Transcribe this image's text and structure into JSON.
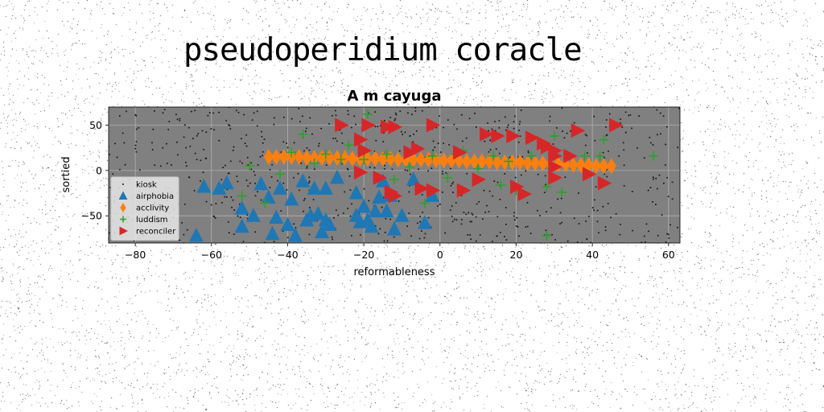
{
  "suptitle": "pseudoperidium coracle",
  "chart_data": {
    "type": "scatter",
    "title": "A m cayuga",
    "xlabel": "reformableness",
    "ylabel": "sortied",
    "xlim": [
      -87,
      63
    ],
    "ylim": [
      -80,
      70
    ],
    "xticks": [
      -80,
      -60,
      -40,
      -20,
      0,
      20,
      40,
      60
    ],
    "yticks": [
      -50,
      0,
      50
    ],
    "grid": true,
    "legend_position": "lower-left",
    "background": "#808080",
    "series": [
      {
        "name": "kiosk",
        "marker": "point",
        "color": "#1a1a1a",
        "count_estimate": 700,
        "x_range": [
          -87,
          63
        ],
        "y_range": [
          -80,
          70
        ]
      },
      {
        "name": "airphobia",
        "marker": "triangle-up",
        "color": "#1f77b4",
        "points": [
          [
            -64,
            -72
          ],
          [
            -62,
            -18
          ],
          [
            -58,
            -20
          ],
          [
            -56,
            -14
          ],
          [
            -52,
            -62
          ],
          [
            -52,
            -42
          ],
          [
            -49,
            -50
          ],
          [
            -47,
            -15
          ],
          [
            -45,
            -30
          ],
          [
            -44,
            -70
          ],
          [
            -43,
            -52
          ],
          [
            -42,
            -20
          ],
          [
            -40,
            -60
          ],
          [
            -39,
            -32
          ],
          [
            -38,
            -72
          ],
          [
            -36,
            -12
          ],
          [
            -35,
            -55
          ],
          [
            -34,
            -50
          ],
          [
            -33,
            -20
          ],
          [
            -32,
            -48
          ],
          [
            -31,
            -68
          ],
          [
            -30,
            -20
          ],
          [
            -30,
            -55
          ],
          [
            -29,
            -60
          ],
          [
            -27,
            -8
          ],
          [
            -22,
            -25
          ],
          [
            -22,
            -50
          ],
          [
            -21,
            -57
          ],
          [
            -20,
            -40
          ],
          [
            -19,
            -55
          ],
          [
            -18,
            -62
          ],
          [
            -17,
            -45
          ],
          [
            -16,
            -30
          ],
          [
            -15,
            -12
          ],
          [
            -14,
            -45
          ],
          [
            -13,
            -28
          ],
          [
            -12,
            -65
          ],
          [
            -10,
            -50
          ],
          [
            -7,
            -10
          ],
          [
            -4,
            -58
          ],
          [
            -2,
            -28
          ]
        ]
      },
      {
        "name": "acclivity",
        "marker": "diamond-thin",
        "color": "#ff7f0e",
        "points": [
          [
            -45,
            15
          ],
          [
            -43,
            15
          ],
          [
            -41,
            15
          ],
          [
            -39,
            15
          ],
          [
            -37,
            15
          ],
          [
            -35,
            14
          ],
          [
            -33,
            14
          ],
          [
            -31,
            14
          ],
          [
            -29,
            14
          ],
          [
            -27,
            14
          ],
          [
            -25,
            14
          ],
          [
            -23,
            13
          ],
          [
            -21,
            13
          ],
          [
            -19,
            13
          ],
          [
            -17,
            13
          ],
          [
            -15,
            13
          ],
          [
            -13,
            13
          ],
          [
            -11,
            12
          ],
          [
            -9,
            12
          ],
          [
            -7,
            12
          ],
          [
            -5,
            12
          ],
          [
            -3,
            12
          ],
          [
            -1,
            11
          ],
          [
            1,
            11
          ],
          [
            3,
            11
          ],
          [
            5,
            11
          ],
          [
            7,
            10
          ],
          [
            9,
            10
          ],
          [
            11,
            10
          ],
          [
            13,
            10
          ],
          [
            15,
            9
          ],
          [
            17,
            9
          ],
          [
            19,
            9
          ],
          [
            21,
            9
          ],
          [
            23,
            8
          ],
          [
            25,
            8
          ],
          [
            27,
            8
          ],
          [
            29,
            7
          ],
          [
            31,
            7
          ],
          [
            33,
            7
          ],
          [
            35,
            6
          ],
          [
            37,
            6
          ],
          [
            39,
            6
          ],
          [
            41,
            5
          ],
          [
            43,
            5
          ],
          [
            45,
            5
          ]
        ]
      },
      {
        "name": "luddism",
        "marker": "plus",
        "color": "#2ca02c",
        "points": [
          [
            -52,
            -28
          ],
          [
            -50,
            5
          ],
          [
            -46,
            -36
          ],
          [
            -42,
            -4
          ],
          [
            -39,
            20
          ],
          [
            -36,
            40
          ],
          [
            -33,
            8
          ],
          [
            -30,
            18
          ],
          [
            -26,
            12
          ],
          [
            -24,
            28
          ],
          [
            -20,
            12
          ],
          [
            -19,
            62
          ],
          [
            -14,
            18
          ],
          [
            -12,
            -10
          ],
          [
            -8,
            4
          ],
          [
            -4,
            -36
          ],
          [
            -2,
            16
          ],
          [
            2,
            -8
          ],
          [
            4,
            18
          ],
          [
            6,
            22
          ],
          [
            10,
            2
          ],
          [
            14,
            16
          ],
          [
            16,
            -16
          ],
          [
            18,
            10
          ],
          [
            20,
            -22
          ],
          [
            24,
            16
          ],
          [
            28,
            -18
          ],
          [
            28,
            -72
          ],
          [
            30,
            38
          ],
          [
            32,
            -24
          ],
          [
            38,
            16
          ],
          [
            42,
            16
          ],
          [
            43,
            34
          ],
          [
            56,
            16
          ]
        ]
      },
      {
        "name": "reconciler",
        "marker": "triangle-right",
        "color": "#d62728",
        "points": [
          [
            -26,
            50
          ],
          [
            -21,
            34
          ],
          [
            -21,
            -2
          ],
          [
            -20,
            22
          ],
          [
            -19,
            50
          ],
          [
            -16,
            -8
          ],
          [
            -14,
            48
          ],
          [
            -12,
            48
          ],
          [
            -13,
            -24
          ],
          [
            -12,
            -28
          ],
          [
            -8,
            20
          ],
          [
            -6,
            24
          ],
          [
            -5,
            -20
          ],
          [
            -2,
            50
          ],
          [
            -2,
            -22
          ],
          [
            5,
            20
          ],
          [
            6,
            -22
          ],
          [
            10,
            -10
          ],
          [
            12,
            40
          ],
          [
            15,
            38
          ],
          [
            19,
            38
          ],
          [
            20,
            -18
          ],
          [
            22,
            -26
          ],
          [
            24,
            36
          ],
          [
            27,
            30
          ],
          [
            28,
            26
          ],
          [
            30,
            22
          ],
          [
            30,
            16
          ],
          [
            30,
            -8
          ],
          [
            30,
            4
          ],
          [
            34,
            16
          ],
          [
            36,
            44
          ],
          [
            39,
            -4
          ],
          [
            43,
            -14
          ],
          [
            46,
            50
          ]
        ]
      }
    ]
  }
}
